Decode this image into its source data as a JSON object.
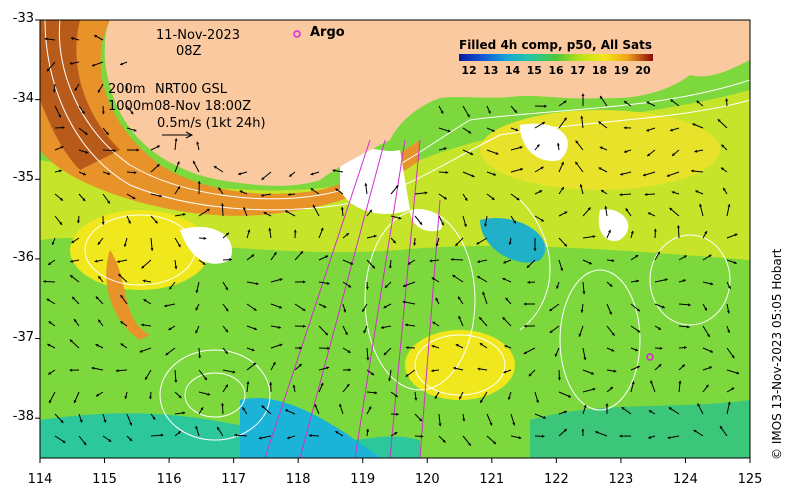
{
  "map": {
    "header": {
      "date": "11-Nov-2023",
      "time": "08Z"
    },
    "legend_lines": {
      "iso200": "200m",
      "iso1000": "1000m",
      "product": "NRT00 GSL",
      "alt_time": "08-Nov 18:00Z",
      "vector_scale": "0.5m/s (1kt 24h)"
    },
    "argo_label": "Argo",
    "colorbar": {
      "title": "Filled 4h comp, p50, All Sats",
      "labels": [
        "12",
        "13",
        "14",
        "15",
        "16",
        "17",
        "18",
        "19",
        "20"
      ],
      "range": [
        12,
        20
      ]
    },
    "credit": "© IMOS 13-Nov-2023 05:05 Hobart",
    "axes": {
      "x_ticks": [
        "114",
        "115",
        "116",
        "117",
        "118",
        "119",
        "120",
        "121",
        "122",
        "123",
        "124",
        "125"
      ],
      "y_ticks": [
        "-33",
        "-34",
        "-35",
        "-36",
        "-37",
        "-38"
      ],
      "xlim": [
        114,
        125
      ],
      "ylim": [
        -38.5,
        -33
      ]
    },
    "colors": {
      "land": "#FBC9A0",
      "argo_marker": "#E020E0",
      "track": "#D030D0",
      "contour": "#FFFFFF"
    }
  }
}
